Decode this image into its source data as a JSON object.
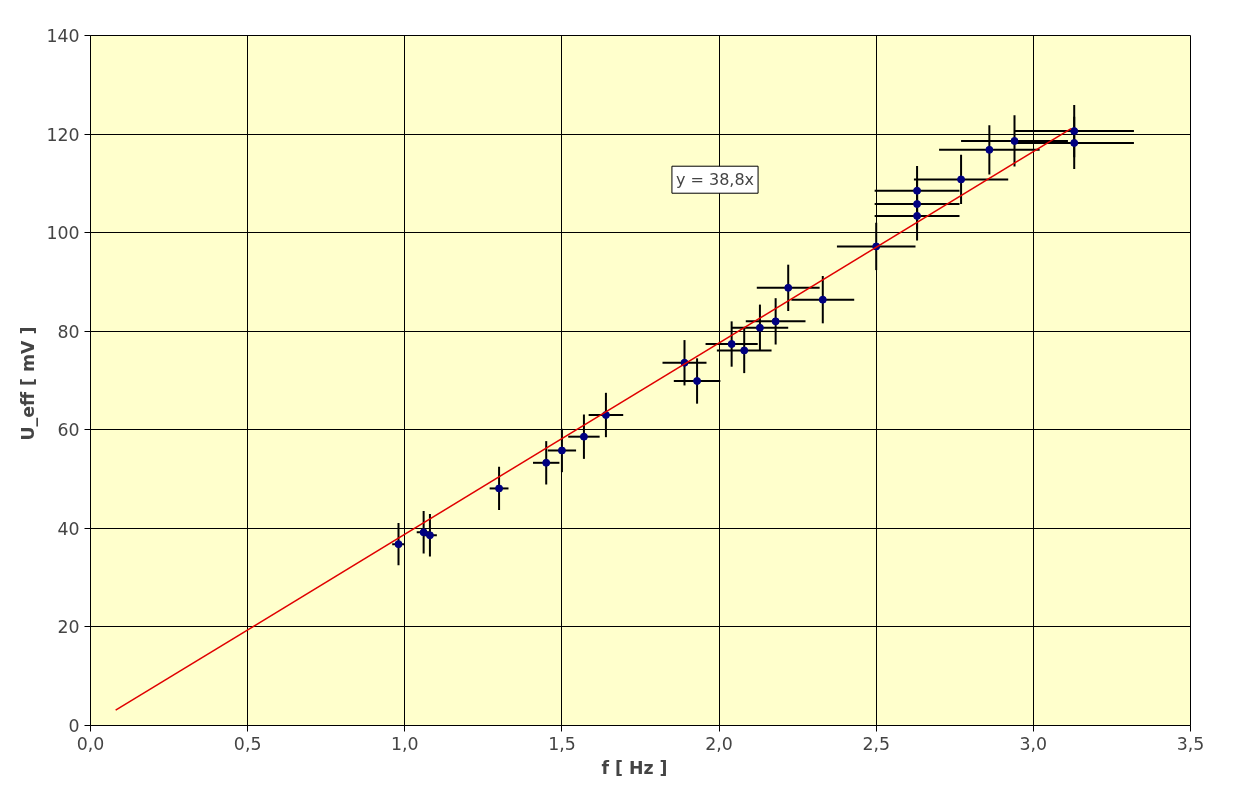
{
  "chart_data": {
    "type": "scatter",
    "xlabel": "f   [ Hz ]",
    "ylabel": "U_eff  [ mV ]",
    "xlim": [
      0,
      3.5
    ],
    "ylim": [
      0,
      140
    ],
    "xticks": [
      {
        "value": 0,
        "label": "0,0"
      },
      {
        "value": 0.5,
        "label": "0,5"
      },
      {
        "value": 1,
        "label": "1,0"
      },
      {
        "value": 1.5,
        "label": "1,5"
      },
      {
        "value": 2,
        "label": "2,0"
      },
      {
        "value": 2.5,
        "label": "2,5"
      },
      {
        "value": 3,
        "label": "3,0"
      },
      {
        "value": 3.5,
        "label": "3,5"
      }
    ],
    "yticks": [
      0,
      20,
      40,
      60,
      80,
      100,
      120,
      140
    ],
    "grid": true,
    "marker": "circle",
    "annotations": [
      "y = 38,8x"
    ],
    "series": [
      {
        "color": "#000080",
        "x": [
          0.98,
          1.06,
          1.08,
          1.3,
          1.45,
          1.5,
          1.57,
          1.64,
          1.89,
          1.93,
          2.04,
          2.08,
          2.13,
          2.18,
          2.22,
          2.33,
          2.5,
          2.63,
          2.63,
          2.63,
          2.77,
          2.86,
          2.94,
          3.13,
          3.13
        ],
        "values": [
          36.8,
          39.2,
          38.6,
          48.1,
          53.3,
          55.8,
          58.6,
          63.0,
          73.6,
          69.9,
          77.4,
          76.1,
          80.7,
          82.0,
          88.8,
          86.4,
          97.2,
          108.5,
          105.8,
          103.4,
          110.8,
          116.8,
          118.6,
          120.6,
          118.2
        ],
        "errors": [
          4.3,
          4.3,
          4.3,
          4.4,
          4.4,
          4.4,
          4.5,
          4.5,
          4.6,
          4.6,
          4.6,
          4.6,
          4.7,
          4.7,
          4.7,
          4.8,
          4.8,
          5.0,
          5.0,
          5.0,
          5.0,
          5.0,
          5.2,
          5.3,
          5.3
        ],
        "xerrors": [
          0.02,
          0.022,
          0.022,
          0.03,
          0.042,
          0.045,
          0.05,
          0.055,
          0.07,
          0.074,
          0.083,
          0.087,
          0.09,
          0.095,
          0.1,
          0.1,
          0.125,
          0.135,
          0.135,
          0.135,
          0.15,
          0.16,
          0.17,
          0.19,
          0.19
        ]
      },
      {
        "type": "line",
        "color": "#e00000",
        "marker": "none",
        "x": [
          0.08,
          3.12
        ],
        "values": [
          3.1,
          121.1
        ]
      }
    ]
  }
}
